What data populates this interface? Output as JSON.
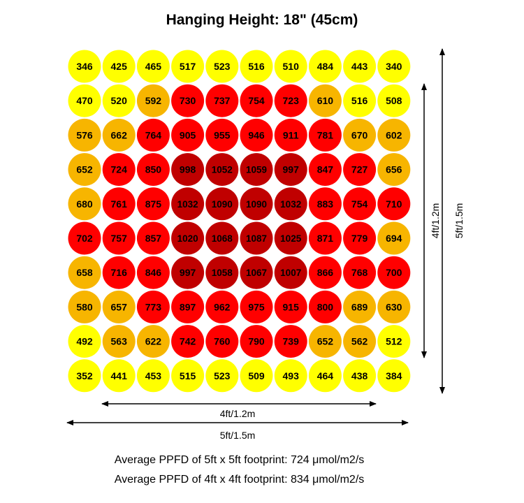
{
  "title": "Hanging Height: 18\" (45cm)",
  "colors": {
    "yellow": "#ffff00",
    "orange": "#f7b500",
    "red": "#ff0000",
    "dark_red": "#c00000"
  },
  "chart_data": {
    "type": "heatmap",
    "title": "Hanging Height: 18\" (45cm)",
    "rows": 10,
    "cols": 10,
    "values": [
      [
        346,
        425,
        465,
        517,
        523,
        516,
        510,
        484,
        443,
        340
      ],
      [
        470,
        520,
        592,
        730,
        737,
        754,
        723,
        610,
        516,
        508
      ],
      [
        576,
        662,
        764,
        905,
        955,
        946,
        911,
        781,
        670,
        602
      ],
      [
        652,
        724,
        850,
        998,
        1052,
        1059,
        997,
        847,
        727,
        656
      ],
      [
        680,
        761,
        875,
        1032,
        1090,
        1090,
        1032,
        883,
        754,
        710
      ],
      [
        702,
        757,
        857,
        1020,
        1068,
        1087,
        1025,
        871,
        779,
        694
      ],
      [
        658,
        716,
        846,
        997,
        1058,
        1067,
        1007,
        866,
        768,
        700
      ],
      [
        580,
        657,
        773,
        897,
        962,
        975,
        915,
        800,
        689,
        630
      ],
      [
        492,
        563,
        622,
        742,
        760,
        790,
        739,
        652,
        562,
        512
      ],
      [
        352,
        441,
        453,
        515,
        523,
        509,
        493,
        464,
        438,
        384
      ]
    ],
    "dimension_labels": {
      "inner_horizontal": "4ft/1.2m",
      "outer_horizontal": "5ft/1.5m",
      "inner_vertical": "4ft/1.2m",
      "outer_vertical": "5ft/1.5m"
    }
  },
  "footer": {
    "line1": "Average PPFD of 5ft x 5ft footprint: 724 μmol/m2/s",
    "line2": "Average PPFD of 4ft x 4ft footprint: 834 μmol/m2/s"
  }
}
